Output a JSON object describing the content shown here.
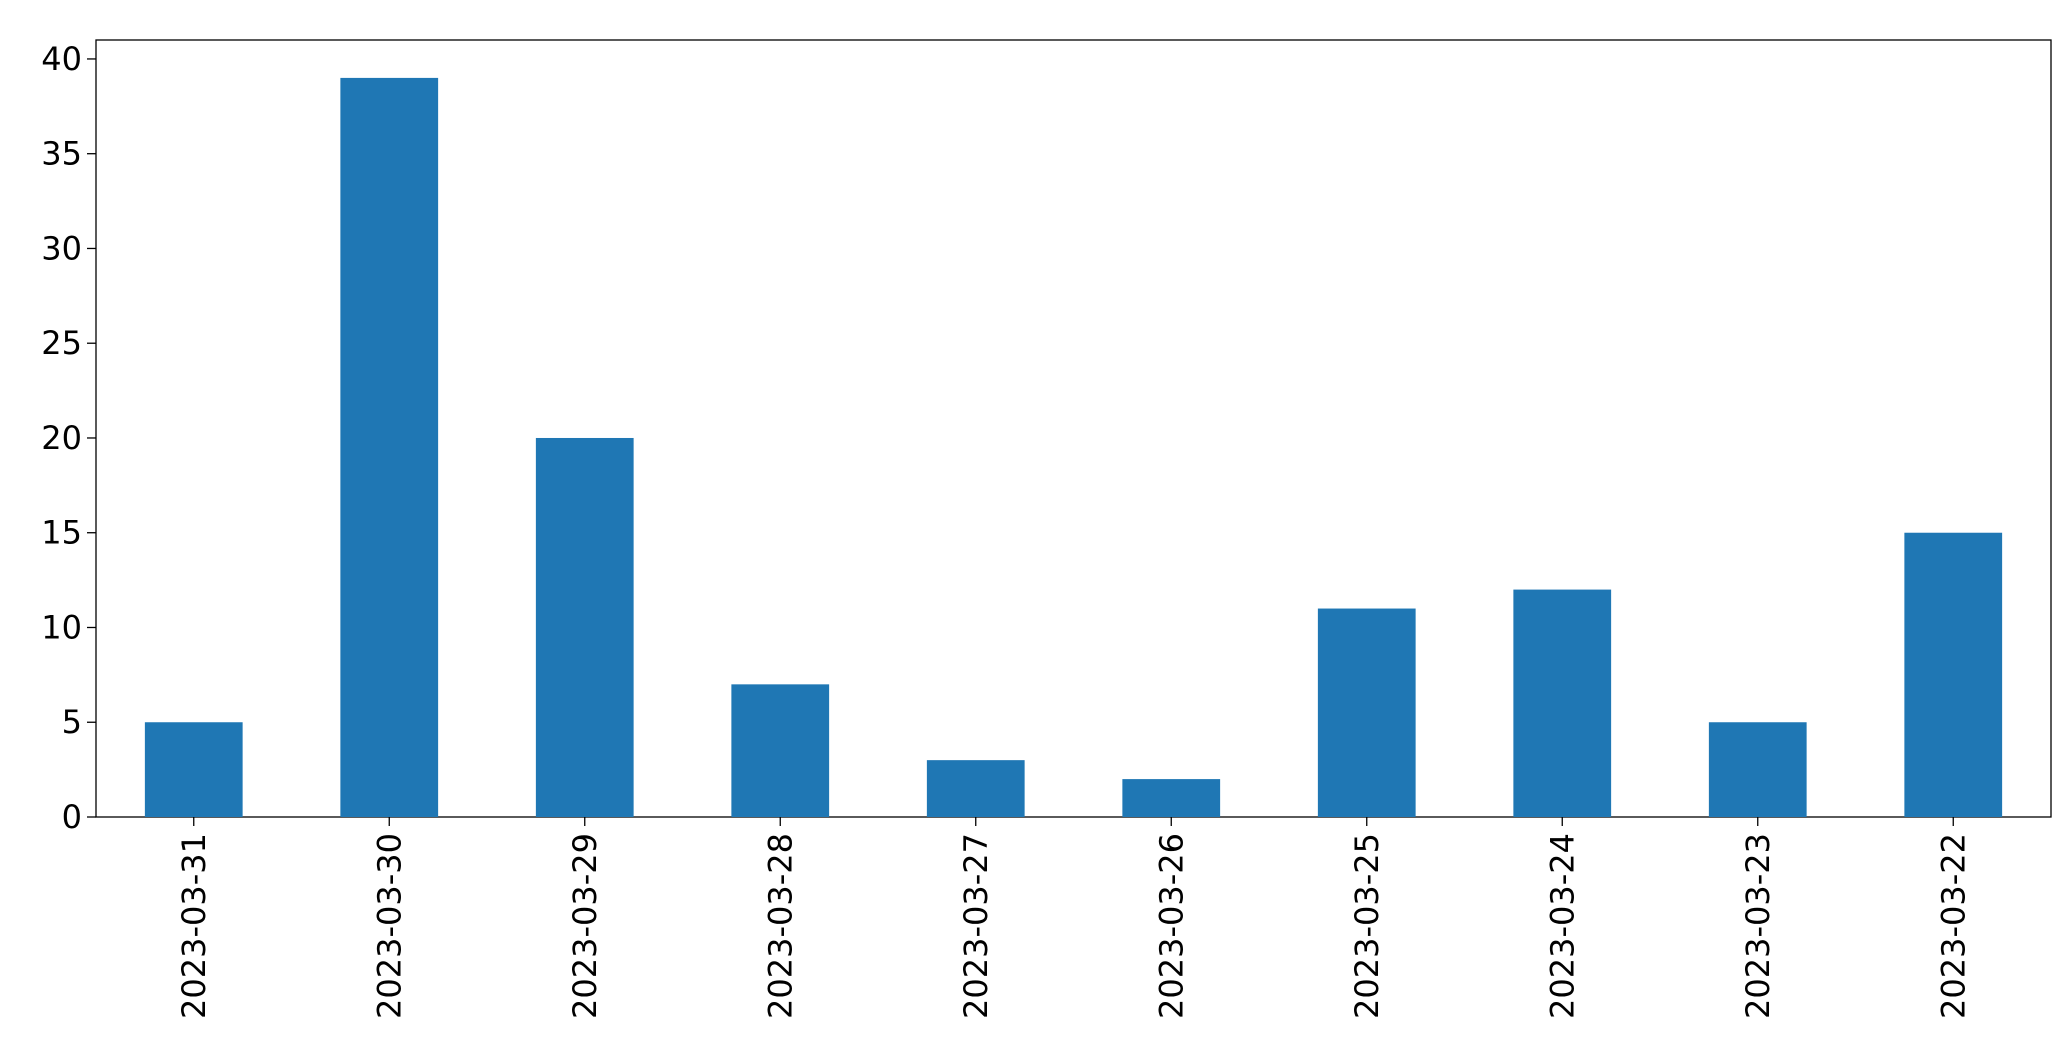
{
  "chart_data": {
    "type": "bar",
    "categories": [
      "2023-03-31",
      "2023-03-30",
      "2023-03-29",
      "2023-03-28",
      "2023-03-27",
      "2023-03-26",
      "2023-03-25",
      "2023-03-24",
      "2023-03-23",
      "2023-03-22"
    ],
    "values": [
      5,
      39,
      20,
      7,
      3,
      2,
      11,
      12,
      5,
      15
    ],
    "color": "#1f77b4",
    "ylim": [
      0,
      41
    ],
    "yticks": [
      0,
      5,
      10,
      15,
      20,
      25,
      30,
      35,
      40
    ],
    "grid": false
  }
}
